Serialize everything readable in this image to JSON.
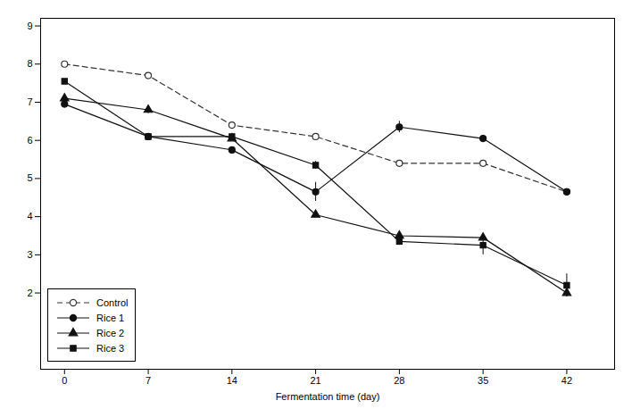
{
  "chart_data": {
    "type": "line",
    "xlabel": "Fermentation time (day)",
    "x": [
      0,
      7,
      14,
      21,
      28,
      35,
      42
    ],
    "series": [
      {
        "name": "Control",
        "color": "#333333",
        "marker": "circle-open",
        "line_style": "dashed",
        "values": [
          8.0,
          7.7,
          6.4,
          6.1,
          5.4,
          5.4,
          4.65
        ],
        "yerr": [
          0.05,
          0.05,
          0.05,
          0.05,
          0.05,
          0.05,
          0.05
        ]
      },
      {
        "name": "Rice 1",
        "color": "#111111",
        "marker": "circle",
        "line_style": "solid",
        "values": [
          6.95,
          6.1,
          5.75,
          4.65,
          6.35,
          6.05,
          4.65
        ],
        "yerr": [
          0.05,
          0.07,
          0.05,
          0.25,
          0.15,
          0.08,
          0.08
        ]
      },
      {
        "name": "Rice 2",
        "color": "#111111",
        "marker": "triangle",
        "line_style": "solid",
        "values": [
          7.1,
          6.8,
          6.05,
          4.05,
          3.5,
          3.45,
          2.0
        ],
        "yerr": [
          0.05,
          0.1,
          0.05,
          0.05,
          0.1,
          0.08,
          0.1
        ]
      },
      {
        "name": "Rice 3",
        "color": "#111111",
        "marker": "square",
        "line_style": "solid",
        "values": [
          7.55,
          6.1,
          6.1,
          5.35,
          3.35,
          3.25,
          2.2
        ],
        "yerr": [
          0.05,
          0.08,
          0.05,
          0.1,
          0.1,
          0.25,
          0.3
        ]
      }
    ],
    "xlim": [
      -2,
      46
    ],
    "ylim": [
      0,
      9.2
    ],
    "xticks": [
      0,
      7,
      14,
      21,
      28,
      35,
      42
    ],
    "yticks": [
      2,
      3,
      4,
      5,
      6,
      7,
      8,
      9
    ],
    "grid": false,
    "legend": "lower left"
  }
}
